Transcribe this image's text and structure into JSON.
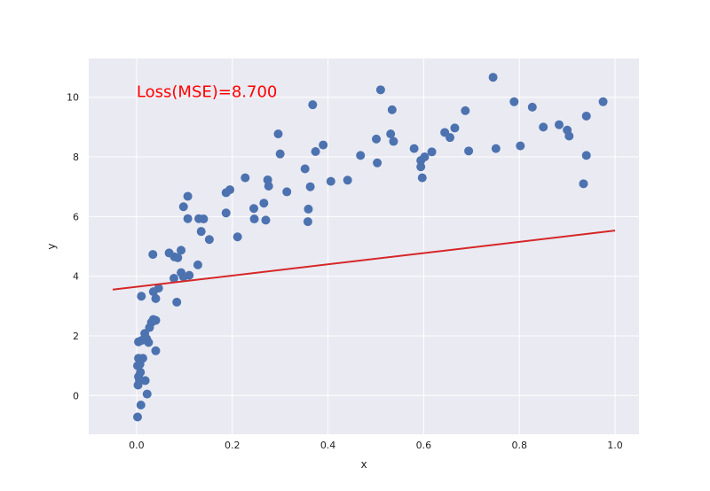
{
  "chart_data": {
    "type": "scatter",
    "title": "",
    "xlabel": "x",
    "ylabel": "y",
    "xlim": [
      -0.1,
      1.05
    ],
    "ylim": [
      -1.3,
      11.3
    ],
    "x_ticks": [
      0.0,
      0.2,
      0.4,
      0.6,
      0.8,
      1.0
    ],
    "y_ticks": [
      0,
      2,
      4,
      6,
      8,
      10
    ],
    "x_tick_labels": [
      "0.0",
      "0.2",
      "0.4",
      "0.6",
      "0.8",
      "1.0"
    ],
    "y_tick_labels": [
      "0",
      "2",
      "4",
      "6",
      "8",
      "10"
    ],
    "grid": true,
    "legend": false,
    "annotation": {
      "text": "Loss(MSE)=8.700",
      "x": 0.0,
      "y": 10.0,
      "color": "#ff0000"
    },
    "colors": {
      "background": "#eaeaf2",
      "grid": "#ffffff",
      "points": "#4c72b0",
      "line": "#d62728"
    },
    "series": [
      {
        "type": "scatter",
        "points": [
          [
            0.002,
            -0.72
          ],
          [
            0.009,
            -0.32
          ],
          [
            0.003,
            0.35
          ],
          [
            0.006,
            0.5
          ],
          [
            0.004,
            0.63
          ],
          [
            0.008,
            0.78
          ],
          [
            0.002,
            1.0
          ],
          [
            0.007,
            1.05
          ],
          [
            0.004,
            1.25
          ],
          [
            0.018,
            0.5
          ],
          [
            0.022,
            0.05
          ],
          [
            0.013,
            1.25
          ],
          [
            0.004,
            1.8
          ],
          [
            0.011,
            1.85
          ],
          [
            0.017,
            2.08
          ],
          [
            0.021,
            1.9
          ],
          [
            0.025,
            1.78
          ],
          [
            0.027,
            2.28
          ],
          [
            0.031,
            2.45
          ],
          [
            0.035,
            2.55
          ],
          [
            0.04,
            2.52
          ],
          [
            0.04,
            1.5
          ],
          [
            0.01,
            3.33
          ],
          [
            0.035,
            3.48
          ],
          [
            0.04,
            3.25
          ],
          [
            0.046,
            3.6
          ],
          [
            0.034,
            4.73
          ],
          [
            0.068,
            4.78
          ],
          [
            0.079,
            4.65
          ],
          [
            0.086,
            4.62
          ],
          [
            0.084,
            3.13
          ],
          [
            0.078,
            3.93
          ],
          [
            0.093,
            4.12
          ],
          [
            0.098,
            3.98
          ],
          [
            0.11,
            4.03
          ],
          [
            0.128,
            4.38
          ],
          [
            0.093,
            4.87
          ],
          [
            0.098,
            6.33
          ],
          [
            0.107,
            5.93
          ],
          [
            0.107,
            6.68
          ],
          [
            0.13,
            5.93
          ],
          [
            0.14,
            5.92
          ],
          [
            0.135,
            5.5
          ],
          [
            0.152,
            5.23
          ],
          [
            0.187,
            6.12
          ],
          [
            0.187,
            6.8
          ],
          [
            0.195,
            6.9
          ],
          [
            0.211,
            5.32
          ],
          [
            0.227,
            7.3
          ],
          [
            0.245,
            6.27
          ],
          [
            0.246,
            5.92
          ],
          [
            0.266,
            6.45
          ],
          [
            0.27,
            5.88
          ],
          [
            0.274,
            7.23
          ],
          [
            0.276,
            7.02
          ],
          [
            0.296,
            8.77
          ],
          [
            0.3,
            8.1
          ],
          [
            0.314,
            6.83
          ],
          [
            0.352,
            7.6
          ],
          [
            0.359,
            6.25
          ],
          [
            0.358,
            5.83
          ],
          [
            0.363,
            7.0
          ],
          [
            0.368,
            9.75
          ],
          [
            0.374,
            8.18
          ],
          [
            0.39,
            8.4
          ],
          [
            0.406,
            7.18
          ],
          [
            0.441,
            7.22
          ],
          [
            0.468,
            8.05
          ],
          [
            0.501,
            8.6
          ],
          [
            0.503,
            7.8
          ],
          [
            0.51,
            10.25
          ],
          [
            0.531,
            8.77
          ],
          [
            0.534,
            9.58
          ],
          [
            0.537,
            8.52
          ],
          [
            0.58,
            8.28
          ],
          [
            0.594,
            7.67
          ],
          [
            0.594,
            7.88
          ],
          [
            0.597,
            7.3
          ],
          [
            0.602,
            8.0
          ],
          [
            0.617,
            8.17
          ],
          [
            0.644,
            8.82
          ],
          [
            0.655,
            8.65
          ],
          [
            0.665,
            8.97
          ],
          [
            0.687,
            9.55
          ],
          [
            0.694,
            8.2
          ],
          [
            0.745,
            10.67
          ],
          [
            0.751,
            8.28
          ],
          [
            0.789,
            9.85
          ],
          [
            0.802,
            8.37
          ],
          [
            0.827,
            9.67
          ],
          [
            0.85,
            9.0
          ],
          [
            0.883,
            9.08
          ],
          [
            0.9,
            8.9
          ],
          [
            0.904,
            8.7
          ],
          [
            0.934,
            7.1
          ],
          [
            0.94,
            8.05
          ],
          [
            0.94,
            9.37
          ],
          [
            0.975,
            9.85
          ]
        ]
      },
      {
        "type": "line",
        "points": [
          [
            -0.05,
            3.55
          ],
          [
            1.0,
            5.53
          ]
        ]
      }
    ]
  }
}
